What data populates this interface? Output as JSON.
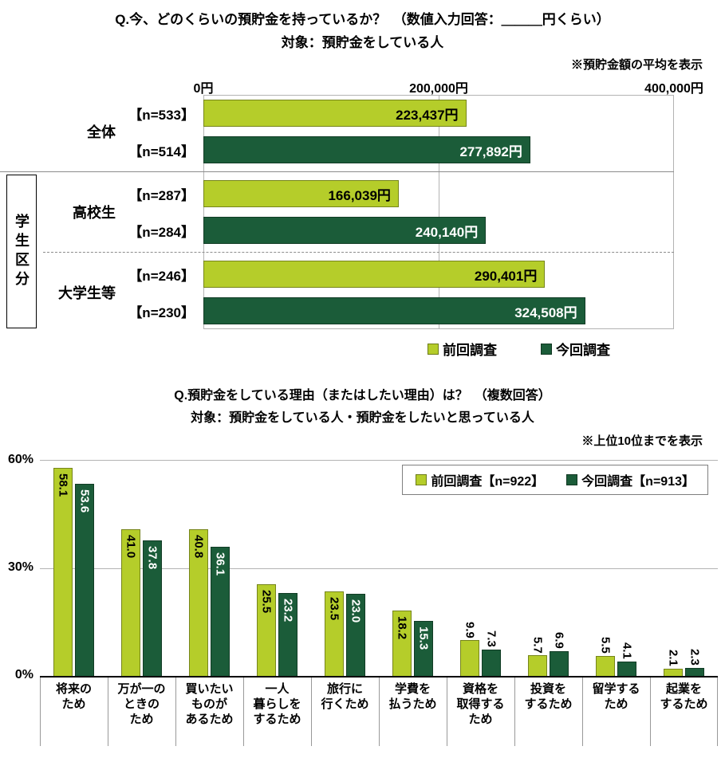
{
  "colors": {
    "prev": "#b5cd2a",
    "curr": "#1b5c39",
    "grid": "#b3b3b3",
    "text": "#000000",
    "label_on_dark": "#ffffff"
  },
  "chart_data": [
    {
      "type": "bar",
      "orientation": "horizontal",
      "title": "Q.今、どのくらいの預貯金を持っているか？　（数値入力回答：＿＿＿円くらい）",
      "subtitle": "対象：預貯金をしている人",
      "note": "※預貯金額の平均を表示",
      "xlim": [
        0,
        400000
      ],
      "xtick_labels": [
        "0円",
        "200,000円",
        "400,000円"
      ],
      "side_group_label": "学生区分",
      "legend": [
        {
          "name": "前回調査",
          "color_key": "prev"
        },
        {
          "name": "今回調査",
          "color_key": "curr"
        }
      ],
      "groups": [
        {
          "category": "全体",
          "separator_before": null,
          "bars": [
            {
              "series": "prev",
              "n_label": "【n=533】",
              "value": 223437,
              "value_label": "223,437円"
            },
            {
              "series": "curr",
              "n_label": "【n=514】",
              "value": 277892,
              "value_label": "277,892円"
            }
          ]
        },
        {
          "category": "高校生",
          "separator_before": "solid",
          "bars": [
            {
              "series": "prev",
              "n_label": "【n=287】",
              "value": 166039,
              "value_label": "166,039円"
            },
            {
              "series": "curr",
              "n_label": "【n=284】",
              "value": 240140,
              "value_label": "240,140円"
            }
          ]
        },
        {
          "category": "大学生等",
          "separator_before": "dashed",
          "bars": [
            {
              "series": "prev",
              "n_label": "【n=246】",
              "value": 290401,
              "value_label": "290,401円"
            },
            {
              "series": "curr",
              "n_label": "【n=230】",
              "value": 324508,
              "value_label": "324,508円"
            }
          ]
        }
      ]
    },
    {
      "type": "bar",
      "orientation": "vertical",
      "title": "Q.預貯金をしている理由（またはしたい理由）は？　（複数回答）",
      "subtitle": "対象：預貯金をしている人・預貯金をしたいと思っている人",
      "note": "※上位10位までを表示",
      "ylim": [
        0,
        60
      ],
      "ytick_labels": [
        "60%",
        "30%",
        "0%"
      ],
      "label_inside_threshold": 13,
      "legend": [
        {
          "name": "前回調査【n=922】",
          "color_key": "prev"
        },
        {
          "name": "今回調査【n=913】",
          "color_key": "curr"
        }
      ],
      "categories": [
        "将来の\nため",
        "万が一の\nときの\nため",
        "買いたい\nものが\nあるため",
        "一人\n暮らしを\nするため",
        "旅行に\n行くため",
        "学費を\n払うため",
        "資格を\n取得する\nため",
        "投資を\nするため",
        "留学する\nため",
        "起業を\nするため"
      ],
      "series": [
        {
          "name": "前回調査",
          "color_key": "prev",
          "values": [
            58.1,
            41.0,
            40.8,
            25.5,
            23.5,
            18.2,
            9.9,
            5.7,
            5.5,
            2.1
          ]
        },
        {
          "name": "今回調査",
          "color_key": "curr",
          "values": [
            53.6,
            37.8,
            36.1,
            23.2,
            23.0,
            15.3,
            7.3,
            6.9,
            4.1,
            2.3
          ]
        }
      ]
    }
  ]
}
